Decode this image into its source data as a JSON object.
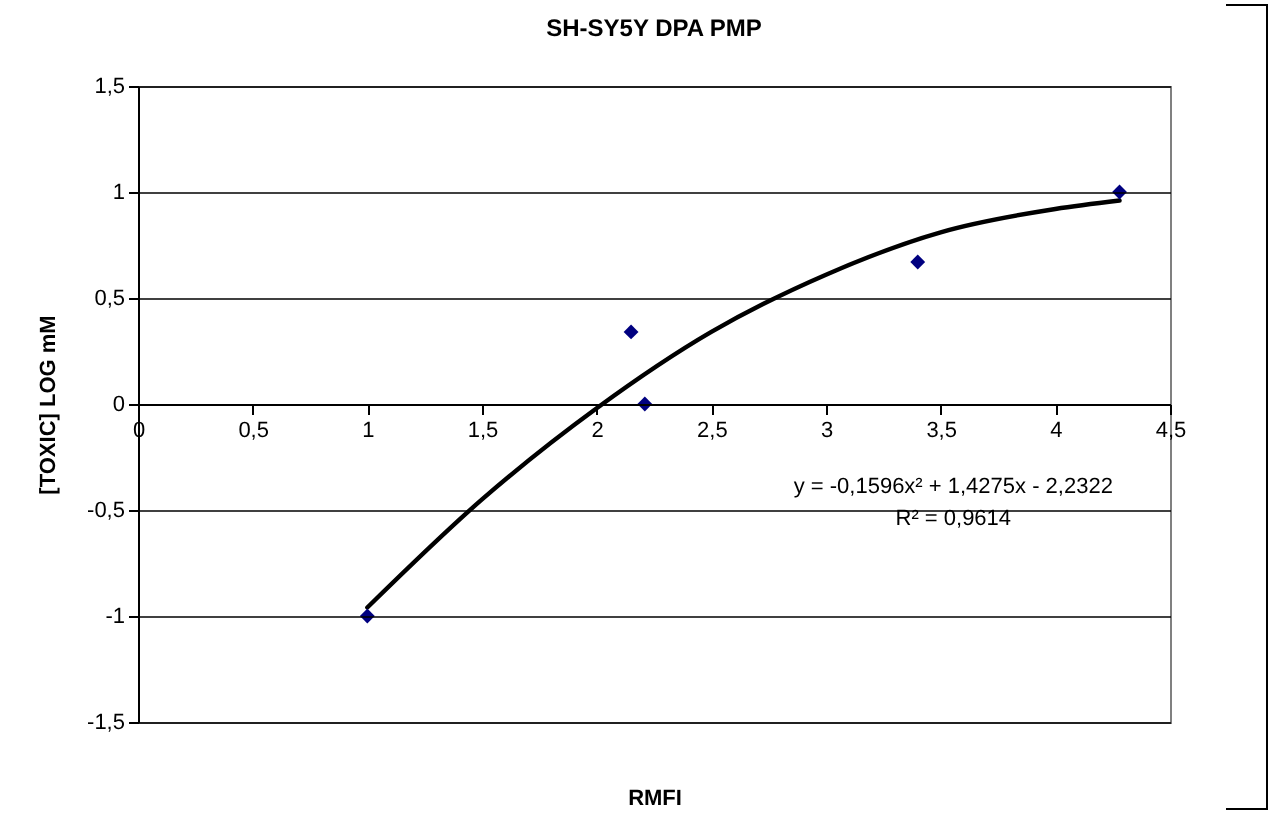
{
  "chart_data": {
    "type": "scatter",
    "title": "SH-SY5Y DPA PMP",
    "xlabel": "RMFI",
    "ylabel": "[TOXIC] LOG mM",
    "series": [
      {
        "color": "#000080",
        "marker": "diamond",
        "x": [
          1,
          2.15,
          2.21,
          3.4,
          4.28
        ],
        "values": [
          -1,
          0.34,
          0,
          0.67,
          1
        ]
      },
      {
        "type": "line",
        "color": "#000000",
        "line_style": "solid",
        "x": [
          1,
          1.5,
          2,
          2.5,
          3,
          3.5,
          4,
          4.28
        ],
        "values": [
          -0.96,
          -0.45,
          -0.02,
          0.34,
          0.61,
          0.81,
          0.92,
          0.96
        ]
      }
    ],
    "annotations": [
      "y = -0,1596x² + 1,4275x - 2,2322",
      "R² = 0,9614"
    ],
    "xlim": [
      0,
      4.5
    ],
    "ylim": [
      -1.5,
      1.5
    ],
    "xticks": [
      0,
      {
        "value": 0.5,
        "label": "0,5"
      },
      1,
      {
        "value": 1.5,
        "label": "1,5"
      },
      2,
      {
        "value": 2.5,
        "label": "2,5"
      },
      3,
      {
        "value": 3.5,
        "label": "3,5"
      },
      4,
      {
        "value": 4.5,
        "label": "4,5"
      }
    ],
    "yticks": [
      {
        "value": -1.5,
        "label": "-1,5"
      },
      -1,
      {
        "value": -0.5,
        "label": "-0,5"
      },
      0,
      {
        "value": 0.5,
        "label": "0,5"
      },
      1,
      {
        "value": 1.5,
        "label": "1,5"
      }
    ],
    "grid": "y"
  }
}
